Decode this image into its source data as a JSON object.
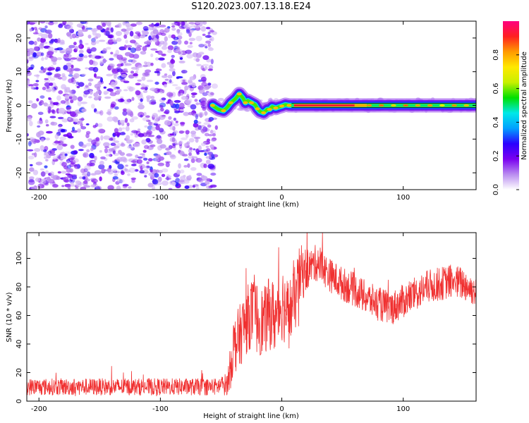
{
  "title": "S120.2023.007.13.18.E24",
  "chart_data": [
    {
      "type": "heatmap",
      "xlabel": "Height of straight line (km)",
      "ylabel": "Frequency (Hz)",
      "xlim": [
        -210,
        160
      ],
      "ylim": [
        -25,
        25
      ],
      "xticks": [
        -200,
        -100,
        0,
        100
      ],
      "yticks": [
        -20,
        -10,
        0,
        10,
        20
      ],
      "colorbar": {
        "label": "Normalized spectral amplitude",
        "range": [
          0.0,
          1.0
        ],
        "ticks": [
          0.0,
          0.2,
          0.4,
          0.6,
          0.8
        ],
        "tick_labels": [
          "0.0",
          "0.2",
          "0.4",
          "0.6",
          "0.8"
        ],
        "colors": [
          "#ffffff",
          "#b98cf0",
          "#7a00f0",
          "#2a00ff",
          "#00a0ff",
          "#00e8e8",
          "#00e000",
          "#c8f000",
          "#ffe800",
          "#ff9a00",
          "#ff2020",
          "#ff0080"
        ]
      },
      "noise_region_x": [
        -210,
        -55
      ],
      "signal_trace": {
        "x": [
          -57,
          -52,
          -48,
          -45,
          -42,
          -38,
          -35,
          -32,
          -30,
          -28,
          -25,
          -22,
          -20,
          -18,
          -15,
          -12,
          -10,
          -8,
          -5,
          -2,
          0,
          3,
          6,
          10,
          15,
          20,
          30,
          40,
          60,
          80,
          100,
          120,
          140,
          160
        ],
        "y": [
          0.0,
          -1.2,
          -1.6,
          -0.6,
          0.8,
          2.0,
          3.4,
          2.2,
          0.8,
          1.4,
          0.8,
          0.2,
          -1.0,
          -1.8,
          -2.2,
          -1.2,
          -1.2,
          -0.4,
          -0.8,
          -0.4,
          -0.2,
          0.2,
          0.0,
          0.0,
          0.0,
          0.0,
          0.0,
          0.0,
          0.0,
          0.0,
          0.0,
          0.0,
          0.0,
          0.0
        ]
      },
      "peak_amplitude_range_x": [
        10,
        60
      ]
    },
    {
      "type": "line",
      "xlabel": "Height of straight line (km)",
      "ylabel": "SNR (10 * v/v)",
      "xlim": [
        -210,
        160
      ],
      "ylim": [
        0,
        118
      ],
      "xticks": [
        -200,
        -100,
        0,
        100
      ],
      "yticks": [
        0,
        20,
        40,
        60,
        80,
        100
      ],
      "series": [
        {
          "color": "#f03030",
          "x": [
            -210,
            -190,
            -170,
            -150,
            -130,
            -110,
            -90,
            -70,
            -55,
            -45,
            -42,
            -40,
            -35,
            -30,
            -25,
            -20,
            -15,
            -10,
            -5,
            0,
            5,
            10,
            15,
            20,
            25,
            30,
            35,
            40,
            50,
            60,
            70,
            80,
            90,
            100,
            110,
            120,
            130,
            140,
            150,
            160
          ],
          "y": [
            10,
            10,
            10,
            10,
            10,
            10,
            10,
            10,
            10,
            12,
            25,
            38,
            45,
            55,
            62,
            58,
            55,
            62,
            58,
            70,
            62,
            68,
            88,
            92,
            95,
            98,
            92,
            88,
            82,
            78,
            72,
            68,
            65,
            70,
            75,
            80,
            82,
            84,
            82,
            76
          ],
          "noise_amplitude": [
            6,
            6,
            6,
            6,
            6,
            6,
            6,
            6,
            6,
            8,
            16,
            20,
            22,
            24,
            24,
            26,
            24,
            26,
            26,
            28,
            24,
            24,
            22,
            16,
            12,
            14,
            12,
            12,
            12,
            12,
            12,
            12,
            12,
            12,
            12,
            12,
            12,
            12,
            12,
            10
          ]
        }
      ]
    }
  ]
}
